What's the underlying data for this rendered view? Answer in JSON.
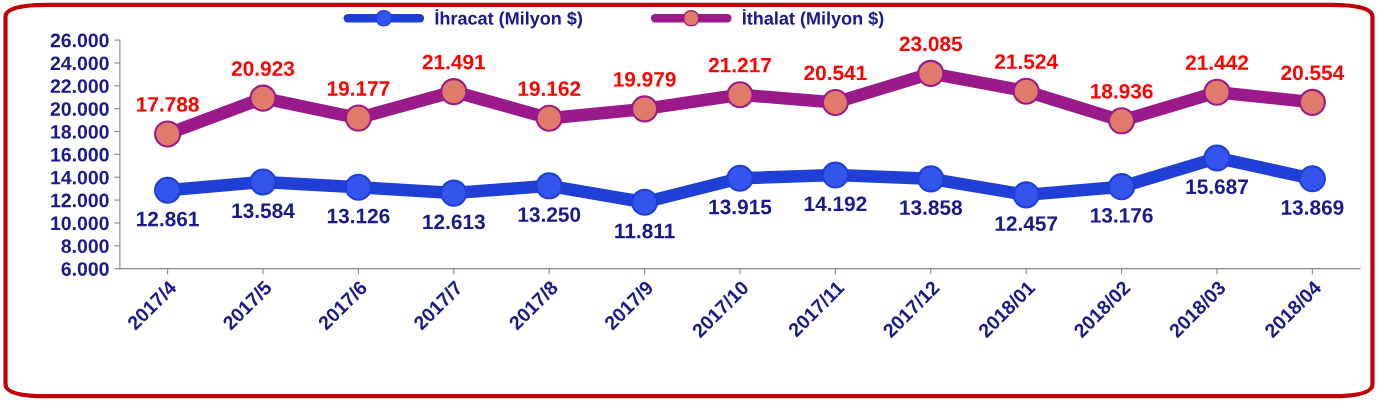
{
  "chart_data": {
    "type": "line",
    "categories": [
      "2017/4",
      "2017/5",
      "2017/6",
      "2017/7",
      "2017/8",
      "2017/9",
      "2017/10",
      "2017/11",
      "2017/12",
      "2018/01",
      "2018/02",
      "2018/03",
      "2018/04"
    ],
    "series": [
      {
        "name": "İhracat (Milyon $)",
        "color": "#1f3fd6",
        "values": [
          12861,
          13584,
          13126,
          12613,
          13250,
          11811,
          13915,
          14192,
          13858,
          12457,
          13176,
          15687,
          13869
        ],
        "value_labels": [
          "12.861",
          "13.584",
          "13.126",
          "12.613",
          "13.250",
          "11.811",
          "13.915",
          "14.192",
          "13.858",
          "12.457",
          "13.176",
          "15.687",
          "13.869"
        ]
      },
      {
        "name": "İthalat (Milyon $)",
        "color": "#9a1a8c",
        "values": [
          17788,
          20923,
          19177,
          21491,
          19162,
          19979,
          21217,
          20541,
          23085,
          21524,
          18936,
          21442,
          20554
        ],
        "value_labels": [
          "17.788",
          "20.923",
          "19.177",
          "21.491",
          "19.162",
          "19.979",
          "21.217",
          "20.541",
          "23.085",
          "21.524",
          "18.936",
          "21.442",
          "20.554"
        ]
      }
    ],
    "ylim": [
      6000,
      26000
    ],
    "yticks": [
      {
        "value": 6000,
        "label": "6.000"
      },
      {
        "value": 8000,
        "label": "8.000"
      },
      {
        "value": 10000,
        "label": "10.000"
      },
      {
        "value": 12000,
        "label": "12.000"
      },
      {
        "value": 14000,
        "label": "14.000"
      },
      {
        "value": 16000,
        "label": "16.000"
      },
      {
        "value": 18000,
        "label": "18.000"
      },
      {
        "value": 20000,
        "label": "20.000"
      },
      {
        "value": 22000,
        "label": "22.000"
      },
      {
        "value": 24000,
        "label": "24.000"
      },
      {
        "value": 26000,
        "label": "26.000"
      }
    ],
    "marker": "circle",
    "line_style": "solid",
    "legend": "top",
    "grid": false
  }
}
